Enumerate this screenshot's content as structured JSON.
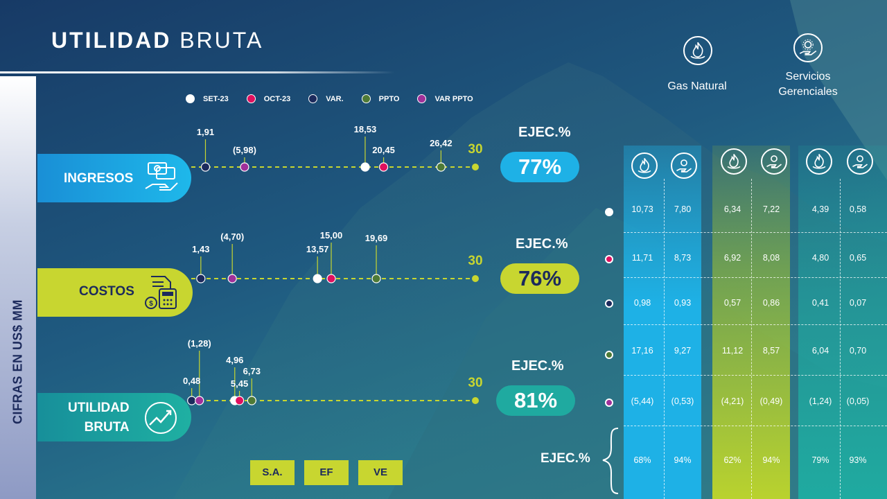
{
  "title": {
    "bold": "UTILIDAD",
    "light": "BRUTA"
  },
  "sidebar_label": "CIFRAS EN US$ MM",
  "legend": [
    {
      "label": "SET-23",
      "color": "#ffffff"
    },
    {
      "label": "OCT-23",
      "color": "#e0105e"
    },
    {
      "label": "VAR.",
      "color": "#1c2a5c"
    },
    {
      "label": "PPTO",
      "color": "#4e7a36"
    },
    {
      "label": "VAR PPTO",
      "color": "#a0309a"
    }
  ],
  "colors": {
    "ingresos": "#1eb1e6",
    "costos": "#c8d630",
    "utilidad": "#1faaa0",
    "gas_band": "#a8c82a",
    "sa_band": "#1eb1e6",
    "ve_band": "#1faaa0"
  },
  "chart_data": {
    "type": "dot-plot",
    "scale": {
      "min": 0,
      "max": 30
    },
    "series_keys": [
      "SET-23",
      "OCT-23",
      "VAR.",
      "PPTO",
      "VAR PPTO"
    ],
    "rows": [
      {
        "name": "INGRESOS",
        "values": {
          "SET-23": 18.53,
          "OCT-23": 20.45,
          "VAR.": 1.91,
          "PPTO": 26.42,
          "VAR PPTO": -5.98
        },
        "labels": {
          "SET-23": "18,53",
          "OCT-23": "20,45",
          "VAR.": "1,91",
          "PPTO": "26,42",
          "VAR PPTO": "(5,98)"
        },
        "max_label": "30",
        "ejec_label": "EJEC.%",
        "ejec": "77%"
      },
      {
        "name": "COSTOS",
        "values": {
          "SET-23": 13.57,
          "OCT-23": 15.0,
          "VAR.": 1.43,
          "PPTO": 19.69,
          "VAR PPTO": -4.7
        },
        "labels": {
          "SET-23": "13,57",
          "OCT-23": "15,00",
          "VAR.": "1,43",
          "PPTO": "19,69",
          "VAR PPTO": "(4,70)"
        },
        "max_label": "30",
        "ejec_label": "EJEC.%",
        "ejec": "76%"
      },
      {
        "name_line1": "UTILIDAD",
        "name_line2": "BRUTA",
        "values": {
          "SET-23": 4.96,
          "OCT-23": 5.45,
          "VAR.": 0.48,
          "PPTO": 6.73,
          "VAR PPTO": -1.28
        },
        "labels": {
          "SET-23": "4,96",
          "OCT-23": "5,45",
          "VAR.": "0,48",
          "PPTO": "6,73",
          "VAR PPTO": "(1,28)"
        },
        "max_label": "30",
        "ejec_label": "EJEC.%",
        "ejec": "81%"
      }
    ]
  },
  "segment_buttons": [
    "S.A.",
    "EF",
    "VE"
  ],
  "segments": {
    "gas_natural": "Gas Natural",
    "servicios_line1": "Servicios",
    "servicios_line2": "Gerenciales"
  },
  "table": {
    "columns": [
      {
        "values": [
          "10,73",
          "11,71",
          "0,98",
          "17,16",
          "(5,44)",
          "68%"
        ]
      },
      {
        "values": [
          "7,80",
          "8,73",
          "0,93",
          "9,27",
          "(0,53)",
          "94%"
        ]
      },
      {
        "values": [
          "6,34",
          "6,92",
          "0,57",
          "11,12",
          "(4,21)",
          "62%"
        ]
      },
      {
        "values": [
          "7,22",
          "8,08",
          "0,86",
          "8,57",
          "(0,49)",
          "94%"
        ]
      },
      {
        "values": [
          "4,39",
          "4,80",
          "0,41",
          "6,04",
          "(1,24)",
          "79%"
        ]
      },
      {
        "values": [
          "0,58",
          "0,65",
          "0,07",
          "0,70",
          "(0,05)",
          "93%"
        ]
      }
    ],
    "ejec_label": "EJEC.%"
  }
}
